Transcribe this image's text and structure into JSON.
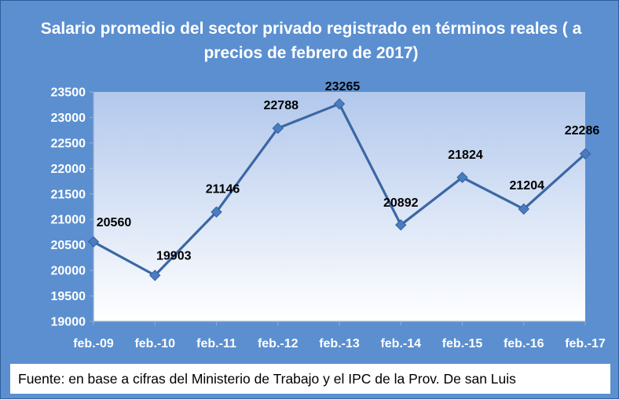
{
  "colors": {
    "background": "#5b8fd0",
    "plot_area_top": "#b2c8ec",
    "plot_area_bottom": "#ffffff",
    "line": "#3b67a4",
    "marker": "#4a7cc0"
  },
  "chart_data": {
    "type": "line",
    "title": "Salario promedio del sector privado registrado en términos reales ( a precios de febrero de 2017)",
    "categories": [
      "feb.-09",
      "feb.-10",
      "feb.-11",
      "feb.-12",
      "feb.-13",
      "feb.-14",
      "feb.-15",
      "feb.-16",
      "feb.-17"
    ],
    "series": [
      {
        "values": [
          20560,
          19903,
          21146,
          22788,
          23265,
          20892,
          21824,
          21204,
          22286
        ]
      }
    ],
    "data_labels": [
      "20560",
      "19903",
      "21146",
      "22788",
      "23265",
      "20892",
      "21824",
      "21204",
      "22286"
    ],
    "ylim": [
      19000,
      23500
    ],
    "yticks": [
      19000,
      19500,
      20000,
      20500,
      21000,
      21500,
      22000,
      22500,
      23000,
      23500
    ],
    "ytick_labels": [
      "19000",
      "19500",
      "20000",
      "20500",
      "21000",
      "21500",
      "22000",
      "22500",
      "23000",
      "23500"
    ],
    "grid": false,
    "legend": "none",
    "marker": "diamond"
  },
  "source_note": "Fuente: en base a cifras del Ministerio de Trabajo y el IPC de la Prov. De san Luis"
}
